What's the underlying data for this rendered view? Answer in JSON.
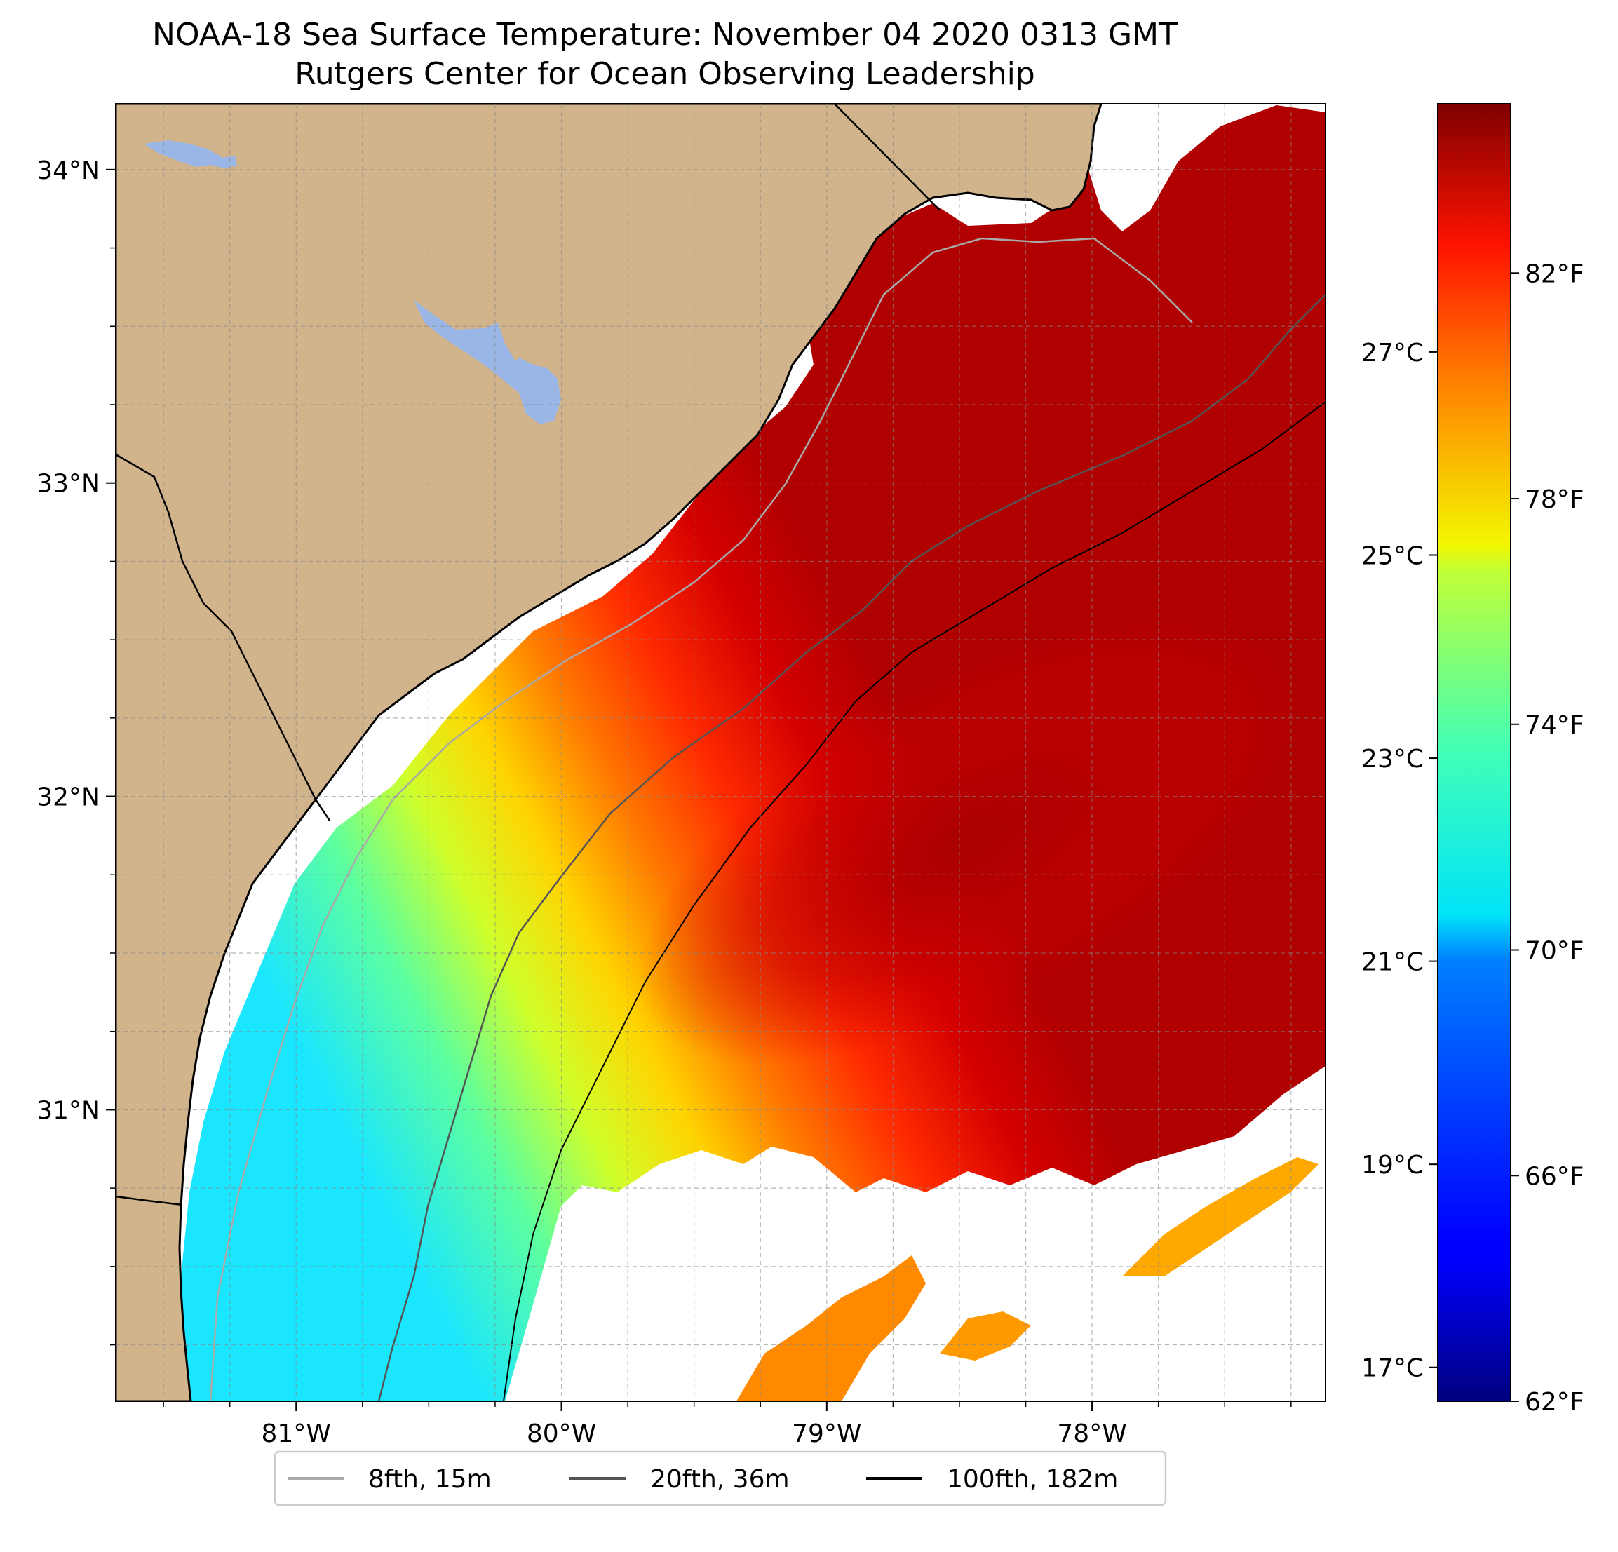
{
  "title": "NOAA-18 Sea Surface Temperature: November 04 2020 0313 GMT",
  "subtitle": "Rutgers Center for Ocean Observing Leadership",
  "map": {
    "lon_range": [
      -81.68,
      -77.12
    ],
    "lat_range": [
      30.07,
      34.21
    ],
    "lon_ticks": [
      {
        "value": -81,
        "label": "81°W"
      },
      {
        "value": -80,
        "label": "80°W"
      },
      {
        "value": -79,
        "label": "79°W"
      },
      {
        "value": -78,
        "label": "78°W"
      }
    ],
    "lat_ticks": [
      {
        "value": 31,
        "label": "31°N"
      },
      {
        "value": 32,
        "label": "32°N"
      },
      {
        "value": 33,
        "label": "33°N"
      },
      {
        "value": 34,
        "label": "34°N"
      }
    ],
    "gridlines": true,
    "colors": {
      "land": "#d2b48c",
      "lakes": "#9ab6e6",
      "coastline": "#000000",
      "no_data": "#ffffff"
    }
  },
  "colorbar": {
    "colormap": "jet",
    "f_range": [
      62,
      85
    ],
    "f_ticks": [
      {
        "value": 62,
        "label": "62°F"
      },
      {
        "value": 66,
        "label": "66°F"
      },
      {
        "value": 70,
        "label": "70°F"
      },
      {
        "value": 74,
        "label": "74°F"
      },
      {
        "value": 78,
        "label": "78°F"
      },
      {
        "value": 82,
        "label": "82°F"
      }
    ],
    "c_ticks": [
      {
        "value": 17,
        "label": "17°C"
      },
      {
        "value": 19,
        "label": "19°C"
      },
      {
        "value": 21,
        "label": "21°C"
      },
      {
        "value": 23,
        "label": "23°C"
      },
      {
        "value": 25,
        "label": "25°C"
      },
      {
        "value": 27,
        "label": "27°C"
      }
    ]
  },
  "legend": {
    "placement": "bottom-center",
    "items": [
      {
        "label": "8fth, 15m",
        "color": "#a9a9a9"
      },
      {
        "label": "20fth, 36m",
        "color": "#545454"
      },
      {
        "label": "100fth, 182m",
        "color": "#000000"
      }
    ]
  }
}
